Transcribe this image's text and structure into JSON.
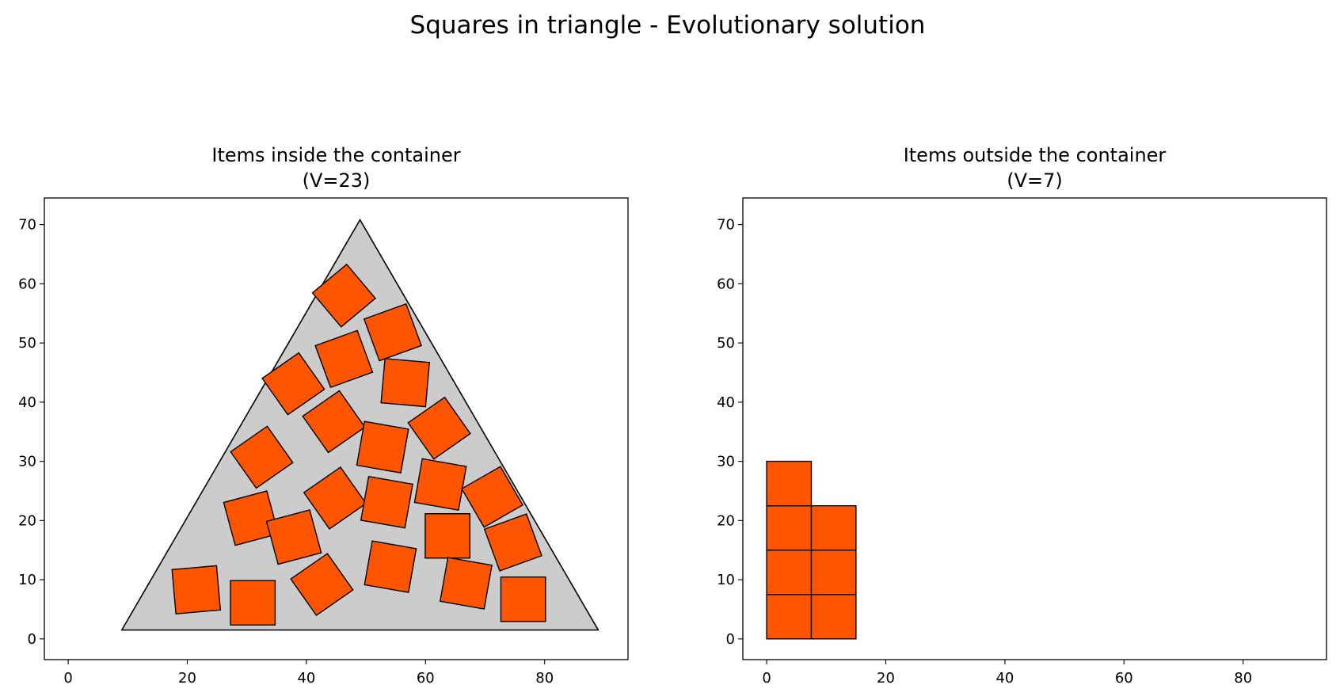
{
  "figure": {
    "title": "Squares in triangle - Evolutionary solution"
  },
  "colors": {
    "item_fill": "#ff5500",
    "item_edge": "#000000",
    "container_fill": "#cccccc",
    "container_edge": "#000000"
  },
  "chart_data": [
    {
      "type": "scatter",
      "title_line1": "Items inside the container",
      "title_line2": "(V=23)",
      "xlim": [
        -4,
        94
      ],
      "ylim": [
        -3.5,
        74.5
      ],
      "x_ticks": [
        0,
        20,
        40,
        60,
        80
      ],
      "y_ticks": [
        0,
        10,
        20,
        30,
        40,
        50,
        60,
        70
      ],
      "grid": false,
      "container": {
        "shape": "triangle",
        "vertices": [
          [
            9,
            1.5
          ],
          [
            49,
            70.8
          ],
          [
            89,
            1.5
          ]
        ]
      },
      "item_side": 7.5,
      "items": [
        {
          "cx": 46.3,
          "cy": 58.0,
          "angle": 40
        },
        {
          "cx": 54.5,
          "cy": 51.8,
          "angle": 20
        },
        {
          "cx": 46.3,
          "cy": 47.3,
          "angle": 20
        },
        {
          "cx": 56.6,
          "cy": 43.3,
          "angle": -5
        },
        {
          "cx": 37.8,
          "cy": 43.1,
          "angle": 35
        },
        {
          "cx": 44.6,
          "cy": 36.7,
          "angle": 35
        },
        {
          "cx": 62.3,
          "cy": 35.6,
          "angle": 35
        },
        {
          "cx": 52.8,
          "cy": 32.4,
          "angle": -10
        },
        {
          "cx": 32.5,
          "cy": 30.7,
          "angle": 35
        },
        {
          "cx": 62.5,
          "cy": 26.1,
          "angle": -10
        },
        {
          "cx": 44.8,
          "cy": 23.8,
          "angle": 35
        },
        {
          "cx": 53.5,
          "cy": 23.1,
          "angle": -10
        },
        {
          "cx": 71.2,
          "cy": 24.0,
          "angle": 30
        },
        {
          "cx": 30.7,
          "cy": 20.4,
          "angle": 15
        },
        {
          "cx": 37.9,
          "cy": 17.2,
          "angle": 15
        },
        {
          "cx": 63.7,
          "cy": 17.4,
          "angle": 0
        },
        {
          "cx": 74.7,
          "cy": 16.3,
          "angle": 20
        },
        {
          "cx": 54.1,
          "cy": 12.2,
          "angle": -10
        },
        {
          "cx": 42.6,
          "cy": 9.2,
          "angle": 35
        },
        {
          "cx": 66.8,
          "cy": 9.4,
          "angle": -10
        },
        {
          "cx": 21.5,
          "cy": 8.3,
          "angle": 5
        },
        {
          "cx": 31.0,
          "cy": 6.1,
          "angle": 0
        },
        {
          "cx": 76.4,
          "cy": 6.7,
          "angle": 0
        }
      ]
    },
    {
      "type": "scatter",
      "title_line1": "Items outside the container",
      "title_line2": "(V=7)",
      "xlim": [
        -4,
        94
      ],
      "ylim": [
        -3.5,
        74.5
      ],
      "x_ticks": [
        0,
        20,
        40,
        60,
        80
      ],
      "y_ticks": [
        0,
        10,
        20,
        30,
        40,
        50,
        60,
        70
      ],
      "grid": false,
      "item_side": 7.5,
      "items": [
        {
          "cx": 3.75,
          "cy": 3.75,
          "angle": 0
        },
        {
          "cx": 3.75,
          "cy": 11.25,
          "angle": 0
        },
        {
          "cx": 3.75,
          "cy": 18.75,
          "angle": 0
        },
        {
          "cx": 3.75,
          "cy": 26.25,
          "angle": 0
        },
        {
          "cx": 11.25,
          "cy": 3.75,
          "angle": 0
        },
        {
          "cx": 11.25,
          "cy": 11.25,
          "angle": 0
        },
        {
          "cx": 11.25,
          "cy": 18.75,
          "angle": 0
        }
      ]
    }
  ]
}
